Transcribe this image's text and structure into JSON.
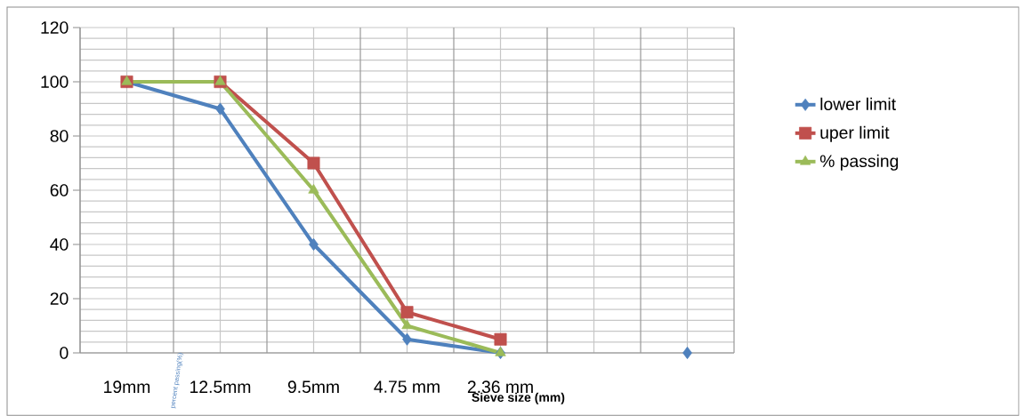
{
  "chart_data": {
    "type": "line",
    "xlabel": "Sieve size (mm)",
    "ylabel": "percent passing(%)",
    "categories": [
      "19mm",
      "12.5mm",
      "9.5mm",
      "4.75 mm",
      "2.36 mm",
      null,
      null
    ],
    "series": [
      {
        "name": "lower limit",
        "color": "#4f81bd",
        "marker": "diamond",
        "values": [
          100,
          90,
          40,
          5,
          0,
          null,
          0
        ]
      },
      {
        "name": "uper limit",
        "color": "#c0504d",
        "marker": "square",
        "values": [
          100,
          100,
          70,
          15,
          5,
          null,
          null
        ]
      },
      {
        "name": "% passing",
        "color": "#9bbb59",
        "marker": "triangle",
        "values": [
          100,
          100,
          60,
          10,
          0,
          null,
          null
        ]
      }
    ],
    "ylim": [
      0,
      120
    ],
    "yticks": [
      0,
      20,
      40,
      60,
      80,
      100,
      120
    ],
    "grid": true,
    "legend": "right",
    "line_style": "solid"
  }
}
